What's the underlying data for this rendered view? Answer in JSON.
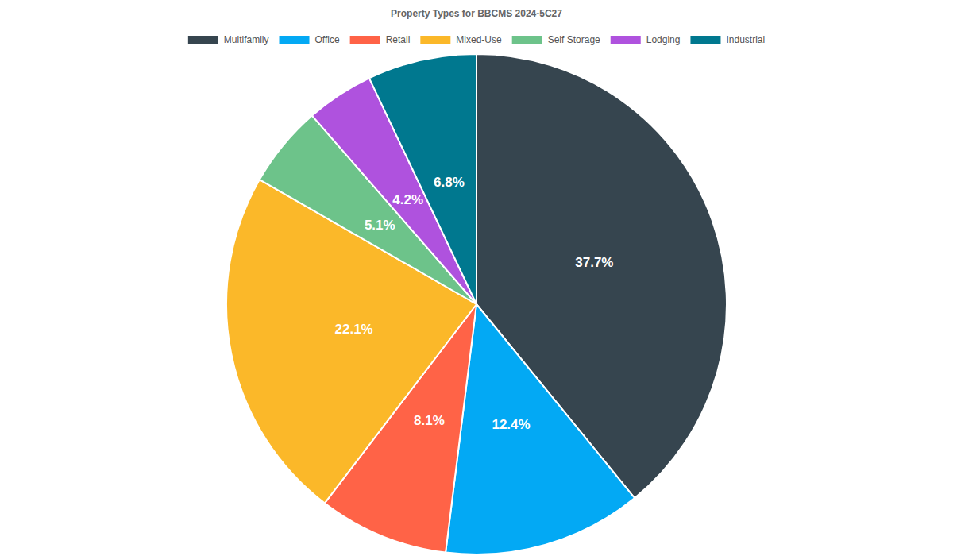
{
  "chart_data": {
    "type": "pie",
    "title": "Property Types for BBCMS 2024-5C27",
    "categories": [
      "Multifamily",
      "Office",
      "Retail",
      "Mixed-Use",
      "Self Storage",
      "Lodging",
      "Industrial"
    ],
    "values": [
      37.7,
      12.4,
      8.1,
      22.1,
      5.1,
      4.2,
      6.8
    ],
    "value_labels": [
      "37.7%",
      "12.4%",
      "8.1%",
      "22.1%",
      "5.1%",
      "4.2%",
      "6.8%"
    ],
    "colors": [
      "#36454f",
      "#03a9f4",
      "#ff6347",
      "#fbb829",
      "#6dc38a",
      "#af52de",
      "#00788f"
    ],
    "legend": "top",
    "data_labels": true
  }
}
